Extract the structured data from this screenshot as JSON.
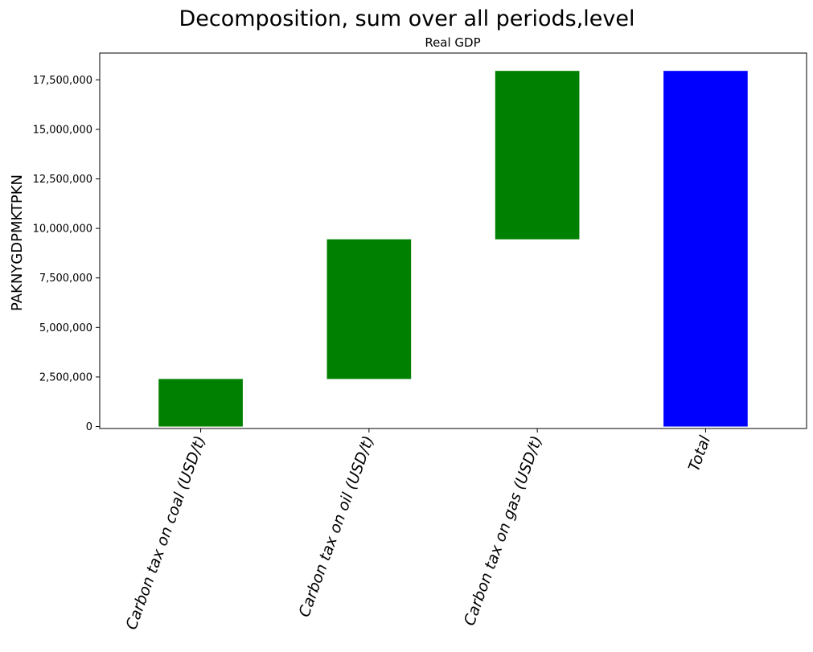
{
  "chart_data": {
    "type": "bar",
    "title": "Decomposition, sum over all periods,level",
    "subtitle": "Real GDP",
    "xlabel": "",
    "ylabel": "PAKNYGDPMKTPKN",
    "ylim": [
      -100000,
      18850000
    ],
    "yticks": [
      0,
      2500000,
      5000000,
      7500000,
      10000000,
      12500000,
      15000000,
      17500000
    ],
    "ytick_labels": [
      "0",
      "2,500,000",
      "5,000,000",
      "7,500,000",
      "10,000,000",
      "12,500,000",
      "15,000,000",
      "17,500,000"
    ],
    "categories": [
      "Carbon tax on coal (USD/t)",
      "Carbon tax on oil (USD/t)",
      "Carbon tax on gas (USD/t)",
      "Total"
    ],
    "values": [
      2400000,
      7050000,
      8500000,
      17950000
    ],
    "bases": [
      0,
      2400000,
      9450000,
      0
    ],
    "colors": [
      "#008000",
      "#008000",
      "#008000",
      "#0000ff"
    ],
    "grid": false,
    "legend": "none"
  }
}
